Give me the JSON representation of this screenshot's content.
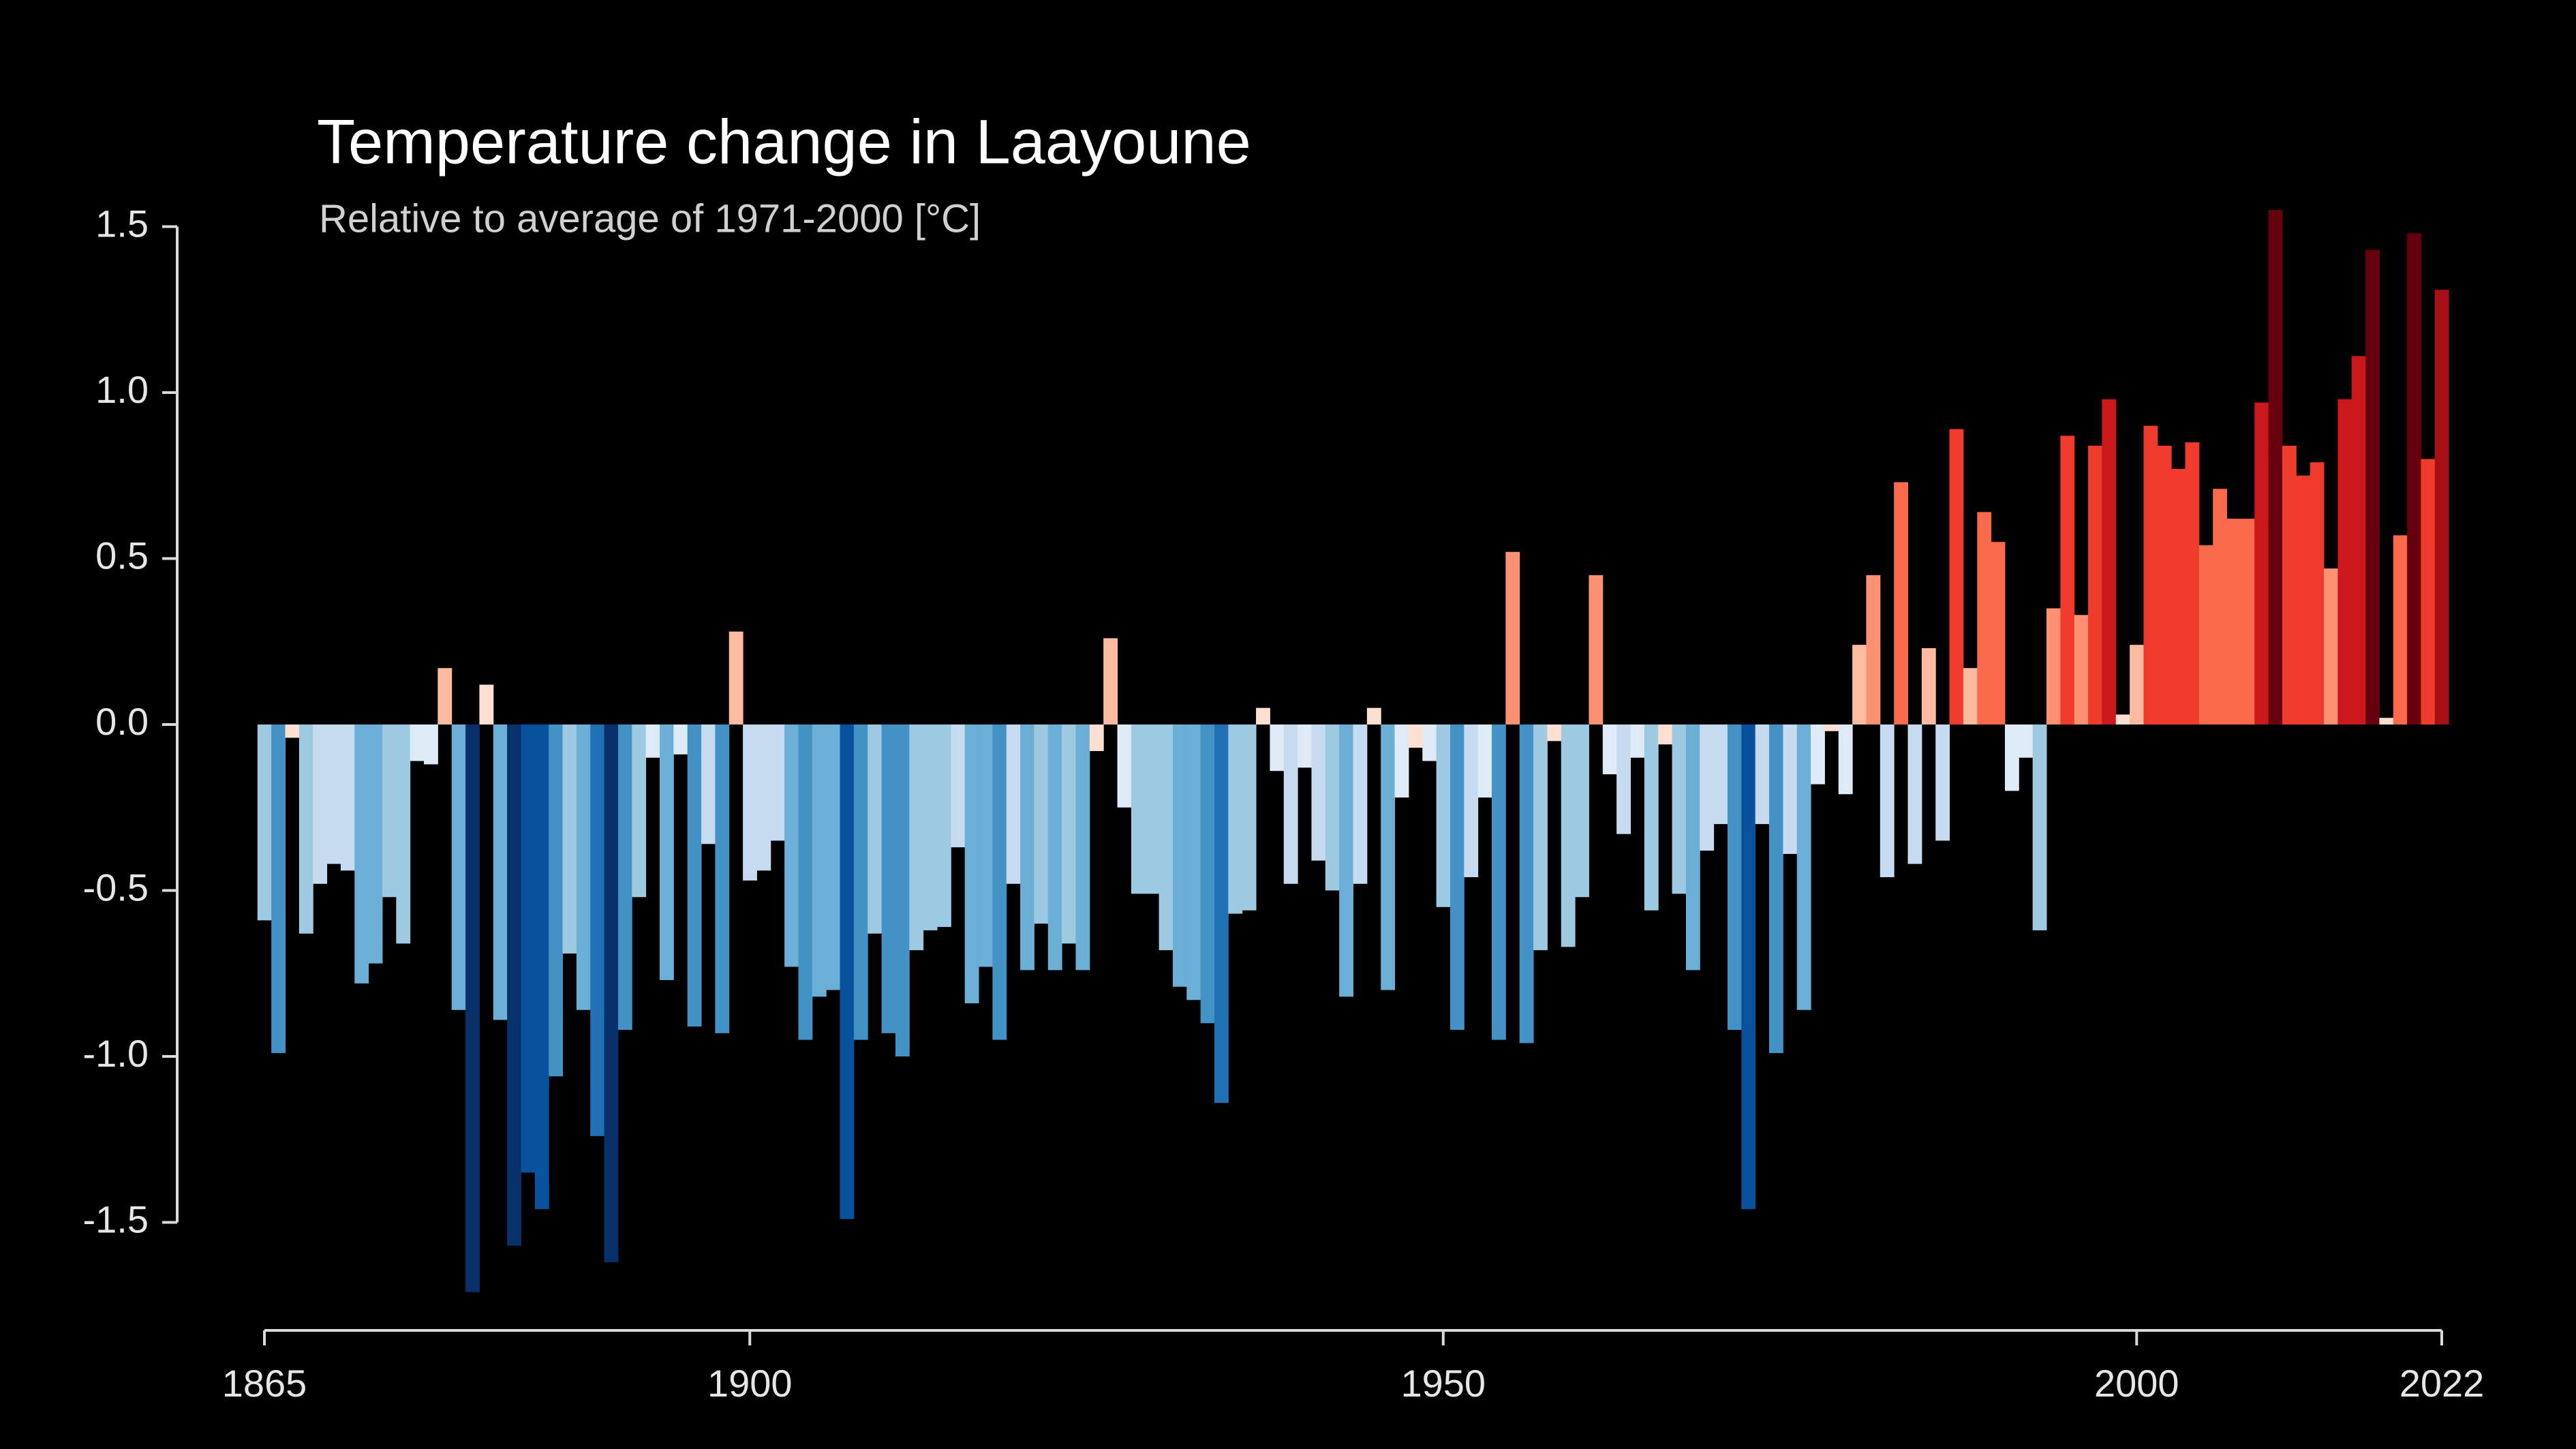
{
  "chart_data": {
    "type": "bar",
    "title": "Temperature change in Laayoune",
    "subtitle": "Relative to average of 1971-2000  [°C]",
    "x": [
      1865,
      1866,
      1867,
      1868,
      1869,
      1870,
      1871,
      1872,
      1873,
      1874,
      1875,
      1876,
      1877,
      1878,
      1879,
      1880,
      1881,
      1882,
      1883,
      1884,
      1885,
      1886,
      1887,
      1888,
      1889,
      1890,
      1891,
      1892,
      1893,
      1894,
      1895,
      1896,
      1897,
      1898,
      1899,
      1900,
      1901,
      1902,
      1903,
      1904,
      1905,
      1906,
      1907,
      1908,
      1909,
      1910,
      1911,
      1912,
      1913,
      1914,
      1915,
      1916,
      1917,
      1918,
      1919,
      1920,
      1921,
      1922,
      1923,
      1924,
      1925,
      1926,
      1927,
      1928,
      1929,
      1930,
      1931,
      1932,
      1933,
      1934,
      1935,
      1936,
      1937,
      1938,
      1939,
      1940,
      1941,
      1942,
      1943,
      1944,
      1945,
      1946,
      1947,
      1948,
      1949,
      1950,
      1951,
      1952,
      1953,
      1954,
      1955,
      1956,
      1957,
      1958,
      1959,
      1960,
      1961,
      1962,
      1963,
      1964,
      1965,
      1966,
      1967,
      1968,
      1969,
      1970,
      1971,
      1972,
      1973,
      1974,
      1975,
      1976,
      1977,
      1978,
      1979,
      1980,
      1981,
      1982,
      1983,
      1984,
      1985,
      1986,
      1987,
      1988,
      1989,
      1990,
      1991,
      1992,
      1993,
      1994,
      1995,
      1996,
      1997,
      1998,
      1999,
      2000,
      2001,
      2002,
      2003,
      2004,
      2005,
      2006,
      2007,
      2008,
      2009,
      2010,
      2011,
      2012,
      2013,
      2014,
      2015,
      2016,
      2017,
      2018,
      2019,
      2020,
      2021,
      2022
    ],
    "values": [
      -0.59,
      -0.99,
      -0.04,
      -0.63,
      -0.48,
      -0.42,
      -0.44,
      -0.78,
      -0.72,
      -0.52,
      -0.66,
      -0.11,
      -0.12,
      0.17,
      -0.86,
      -1.71,
      0.12,
      -0.89,
      -1.57,
      -1.35,
      -1.46,
      -1.06,
      -0.69,
      -0.86,
      -1.24,
      -1.62,
      -0.92,
      -0.52,
      -0.1,
      -0.77,
      -0.09,
      -0.91,
      -0.36,
      -0.93,
      0.28,
      -0.47,
      -0.44,
      -0.35,
      -0.73,
      -0.95,
      -0.82,
      -0.8,
      -1.49,
      -0.95,
      -0.63,
      -0.93,
      -1.0,
      -0.68,
      -0.62,
      -0.61,
      -0.37,
      -0.84,
      -0.73,
      -0.95,
      -0.48,
      -0.74,
      -0.6,
      -0.74,
      -0.66,
      -0.74,
      -0.08,
      0.26,
      -0.25,
      -0.51,
      -0.51,
      -0.68,
      -0.79,
      -0.83,
      -0.9,
      -1.14,
      -0.57,
      -0.56,
      0.05,
      -0.14,
      -0.48,
      -0.13,
      -0.41,
      -0.5,
      -0.82,
      -0.48,
      0.05,
      -0.8,
      -0.22,
      -0.07,
      -0.11,
      -0.55,
      -0.92,
      -0.46,
      -0.22,
      -0.95,
      0.52,
      -0.96,
      -0.68,
      -0.05,
      -0.67,
      -0.52,
      0.45,
      -0.15,
      -0.33,
      -0.1,
      -0.56,
      -0.06,
      -0.51,
      -0.74,
      -0.38,
      -0.3,
      -0.92,
      -1.46,
      -0.3,
      -0.99,
      -0.39,
      -0.86,
      -0.18,
      -0.02,
      -0.21,
      0.24,
      0.45,
      -0.46,
      0.73,
      -0.42,
      0.23,
      -0.35,
      0.89,
      0.17,
      0.64,
      0.55,
      -0.2,
      -0.1,
      -0.62,
      0.35,
      0.87,
      0.33,
      0.84,
      0.98,
      0.03,
      0.24,
      0.9,
      0.84,
      0.77,
      0.85,
      0.54,
      0.71,
      0.62,
      0.62,
      0.97,
      1.55,
      0.84,
      0.75,
      0.79,
      0.47,
      0.98,
      1.11,
      1.43,
      0.02,
      0.57,
      1.48,
      0.8,
      1.31
    ],
    "colormap": [
      "#08306b",
      "#08519c",
      "#2171b5",
      "#4292c6",
      "#6baed6",
      "#9ecae1",
      "#c6dbef",
      "#deebf7",
      "#fee0d2",
      "#fcbba1",
      "#fc9272",
      "#fb6a4a",
      "#ef3b2c",
      "#cb181d",
      "#a50f15",
      "#67000d"
    ],
    "xlim": [
      1865,
      2022
    ],
    "xticks": [
      1865,
      1900,
      1950,
      2000,
      2022
    ],
    "ylim": [
      -1.5,
      1.5
    ],
    "yticks": [
      {
        "value": 1.5,
        "label": "1.5"
      },
      {
        "value": 1,
        "label": "1.0"
      },
      {
        "value": 0.5,
        "label": "0.5"
      },
      {
        "value": 0,
        "label": "0.0"
      },
      {
        "value": -0.5,
        "label": "-0.5"
      },
      {
        "value": -1,
        "label": "-1.0"
      },
      {
        "value": -1.5,
        "label": "-1.5"
      }
    ]
  }
}
